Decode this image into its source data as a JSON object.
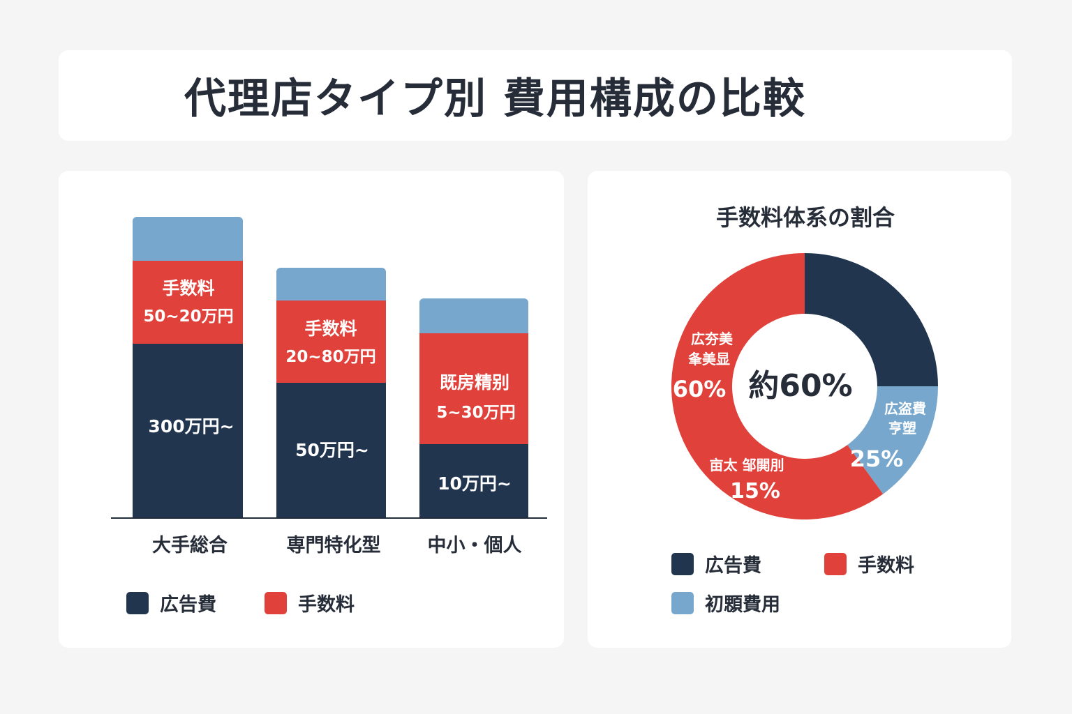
{
  "page": {
    "title": "代理店タイプ別 費用構成の比較"
  },
  "colors": {
    "ad": "#21354f",
    "fee": "#e0413a",
    "initial": "#77a7cd"
  },
  "chart_data": [
    {
      "type": "bar",
      "stacked": true,
      "categories": [
        "大手総合",
        "専門特化型",
        "中小・個人"
      ],
      "series": [
        {
          "key": "ad",
          "labels": [
            "300万円~",
            "50万円~",
            "10万円~"
          ]
        },
        {
          "key": "fee",
          "name_labels": [
            "手数料",
            "手数料",
            "既房精别"
          ],
          "labels": [
            "50~20万円",
            "20~80万円",
            "5~30万円"
          ]
        },
        {
          "key": "initial"
        }
      ],
      "legend": [
        {
          "key": "ad",
          "label": "広告費"
        },
        {
          "key": "fee",
          "label": "手数料"
        }
      ],
      "legend_position": "bottom"
    },
    {
      "type": "pie",
      "donut": true,
      "title": "手数料体系の割合",
      "center_label": "約60%",
      "slices": [
        {
          "key": "ad",
          "value": 25,
          "label_lines": [
            "広盗費",
            "亨塑"
          ],
          "value_label": "25%"
        },
        {
          "key": "initial",
          "value": 15,
          "label_lines": [
            "亩太 邹閧刖"
          ],
          "value_label": "15%"
        },
        {
          "key": "fee",
          "value": 60,
          "label_lines": [
            "広夯美",
            "夆美显"
          ],
          "value_label": "60%"
        }
      ],
      "legend": [
        {
          "key": "ad",
          "label": "広告費"
        },
        {
          "key": "fee",
          "label": "手数料"
        },
        {
          "key": "initial",
          "label": "初顋費用"
        }
      ],
      "legend_position": "bottom"
    }
  ]
}
